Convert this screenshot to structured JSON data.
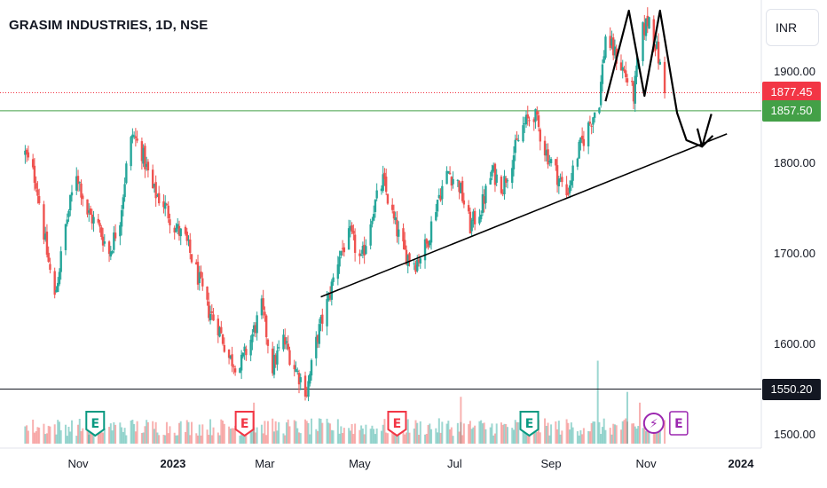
{
  "header": {
    "title": "GRASIM INDUSTRIES, 1D, NSE",
    "currency": "INR"
  },
  "colors": {
    "up": "#26a69a",
    "down": "#ef5350",
    "resistance": "#43a047",
    "support": "#131722",
    "last_price": "#f23645",
    "earnings": "#089981",
    "earnings_red": "#f23645",
    "dividend": "#9c27b0"
  },
  "chart_data": {
    "type": "candlestick",
    "title": "GRASIM INDUSTRIES, 1D, NSE",
    "ylim": [
      1490,
      1970
    ],
    "y_ticks": [
      "1900.00",
      "1800.00",
      "1700.00",
      "1600.00",
      "1500.00"
    ],
    "x_ticks": [
      {
        "label": "Nov",
        "date": "2022-11-01",
        "bold": false
      },
      {
        "label": "2023",
        "date": "2023-01-01",
        "bold": true
      },
      {
        "label": "Mar",
        "date": "2023-03-01",
        "bold": false
      },
      {
        "label": "May",
        "date": "2023-05-01",
        "bold": false
      },
      {
        "label": "Jul",
        "date": "2023-07-01",
        "bold": false
      },
      {
        "label": "Sep",
        "date": "2023-09-01",
        "bold": false
      },
      {
        "label": "Nov",
        "date": "2023-11-01",
        "bold": false
      },
      {
        "label": "2024",
        "date": "2024-01-01",
        "bold": true
      }
    ],
    "price_path": [
      [
        "2022-09-28",
        1810
      ],
      [
        "2022-10-05",
        1780
      ],
      [
        "2022-10-12",
        1700
      ],
      [
        "2022-10-17",
        1650
      ],
      [
        "2022-10-24",
        1730
      ],
      [
        "2022-10-31",
        1790
      ],
      [
        "2022-11-07",
        1745
      ],
      [
        "2022-11-14",
        1730
      ],
      [
        "2022-11-21",
        1700
      ],
      [
        "2022-11-28",
        1740
      ],
      [
        "2022-12-02",
        1795
      ],
      [
        "2022-12-06",
        1832
      ],
      [
        "2022-12-12",
        1812
      ],
      [
        "2022-12-19",
        1770
      ],
      [
        "2022-12-26",
        1755
      ],
      [
        "2023-01-02",
        1730
      ],
      [
        "2023-01-09",
        1715
      ],
      [
        "2023-01-16",
        1680
      ],
      [
        "2023-01-23",
        1640
      ],
      [
        "2023-01-30",
        1620
      ],
      [
        "2023-02-06",
        1585
      ],
      [
        "2023-02-13",
        1575
      ],
      [
        "2023-02-20",
        1605
      ],
      [
        "2023-02-27",
        1640
      ],
      [
        "2023-03-06",
        1575
      ],
      [
        "2023-03-13",
        1605
      ],
      [
        "2023-03-20",
        1575
      ],
      [
        "2023-03-28",
        1548
      ],
      [
        "2023-04-04",
        1610
      ],
      [
        "2023-04-11",
        1650
      ],
      [
        "2023-04-18",
        1700
      ],
      [
        "2023-04-25",
        1720
      ],
      [
        "2023-05-02",
        1690
      ],
      [
        "2023-05-09",
        1745
      ],
      [
        "2023-05-16",
        1780
      ],
      [
        "2023-05-23",
        1735
      ],
      [
        "2023-05-30",
        1700
      ],
      [
        "2023-06-06",
        1690
      ],
      [
        "2023-06-13",
        1710
      ],
      [
        "2023-06-20",
        1760
      ],
      [
        "2023-06-27",
        1790
      ],
      [
        "2023-07-04",
        1775
      ],
      [
        "2023-07-11",
        1730
      ],
      [
        "2023-07-18",
        1750
      ],
      [
        "2023-07-25",
        1790
      ],
      [
        "2023-08-01",
        1775
      ],
      [
        "2023-08-08",
        1810
      ],
      [
        "2023-08-14",
        1840
      ],
      [
        "2023-08-21",
        1855
      ],
      [
        "2023-08-28",
        1815
      ],
      [
        "2023-09-04",
        1790
      ],
      [
        "2023-09-11",
        1765
      ],
      [
        "2023-09-18",
        1810
      ],
      [
        "2023-09-25",
        1840
      ],
      [
        "2023-10-02",
        1870
      ],
      [
        "2023-10-06",
        1940
      ],
      [
        "2023-10-12",
        1920
      ],
      [
        "2023-10-18",
        1900
      ],
      [
        "2023-10-24",
        1875
      ],
      [
        "2023-10-30",
        1945
      ],
      [
        "2023-11-03",
        1960
      ],
      [
        "2023-11-08",
        1925
      ],
      [
        "2023-11-13",
        1877
      ]
    ],
    "volume_scale_max": 1000,
    "volume_spikes": [
      {
        "date": "2022-11-08",
        "value": 300,
        "up": true
      },
      {
        "date": "2023-02-22",
        "value": 420,
        "up": false
      },
      {
        "date": "2023-07-05",
        "value": 480,
        "up": false
      },
      {
        "date": "2023-10-01",
        "value": 850,
        "up": true
      },
      {
        "date": "2023-10-20",
        "value": 530,
        "up": true
      },
      {
        "date": "2023-10-28",
        "value": 420,
        "up": false
      }
    ],
    "horizontal_levels": [
      {
        "price": 1857.5,
        "label": "1857.50",
        "kind": "resistance"
      },
      {
        "price": 1550.2,
        "label": "1550.20",
        "kind": "support"
      }
    ],
    "last_price": {
      "price": 1877.45,
      "label": "1877.45"
    },
    "trendline": {
      "start": {
        "date": "2023-04-06",
        "price": 1652
      },
      "end": {
        "date": "2023-12-23",
        "price": 1832
      }
    },
    "projection_path": [
      [
        "2023-10-06",
        1868
      ],
      [
        "2023-10-21",
        1968
      ],
      [
        "2023-10-31",
        1874
      ],
      [
        "2023-11-10",
        1968
      ],
      [
        "2023-11-21",
        1855
      ],
      [
        "2023-11-27",
        1825
      ],
      [
        "2023-12-07",
        1818
      ],
      [
        "2023-12-13",
        1854
      ]
    ],
    "projection_arrowhead": [
      [
        "2023-12-04",
        1838
      ],
      [
        "2023-12-07",
        1818
      ],
      [
        "2023-12-14",
        1830
      ]
    ],
    "events": [
      {
        "date": "2022-11-12",
        "letter": "E",
        "type": "earnings-beat"
      },
      {
        "date": "2023-02-16",
        "letter": "E",
        "type": "earnings-miss"
      },
      {
        "date": "2023-05-25",
        "letter": "E",
        "type": "earnings-miss"
      },
      {
        "date": "2023-08-18",
        "letter": "E",
        "type": "earnings-beat"
      },
      {
        "date": "2023-11-06",
        "letter": "⚡",
        "type": "dividend"
      },
      {
        "date": "2023-11-22",
        "letter": "E",
        "type": "earnings-upcoming"
      }
    ]
  }
}
